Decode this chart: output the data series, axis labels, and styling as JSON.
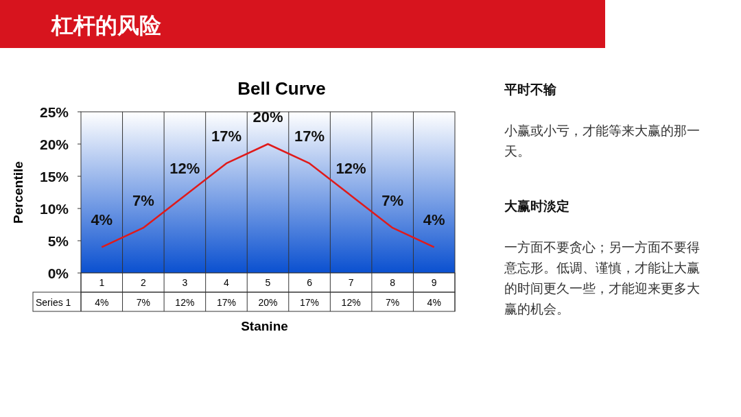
{
  "chart_data": {
    "type": "line",
    "title": "杠杆的风险",
    "subtitle": "Bell Curve",
    "xlabel": "Stanine",
    "ylabel": "Percentile",
    "categories": [
      "1",
      "2",
      "3",
      "4",
      "5",
      "6",
      "7",
      "8",
      "9"
    ],
    "series": [
      {
        "name": "Series 1",
        "color": "#e01a1a",
        "values": [
          4,
          7,
          12,
          17,
          20,
          17,
          12,
          7,
          4
        ],
        "value_labels": [
          "4%",
          "7%",
          "12%",
          "17%",
          "20%",
          "17%",
          "12%",
          "7%",
          "4%"
        ]
      }
    ],
    "ylim": [
      0,
      25
    ],
    "yticks": [
      {
        "value": 0,
        "label": "0%"
      },
      {
        "value": 5,
        "label": "5%"
      },
      {
        "value": 10,
        "label": "10%"
      },
      {
        "value": 15,
        "label": "15%"
      },
      {
        "value": 20,
        "label": "20%"
      },
      {
        "value": 25,
        "label": "25%"
      }
    ],
    "grid": "x",
    "legend": false,
    "marker": "none",
    "line_style": "solid",
    "annotations": [
      "平时不输",
      "小赢或小亏，才能等来大赢的那一天。",
      "大赢时淡定",
      "一方面不要贪心；另一方面不要得意忘形。低调、谨慎，才能让大赢的时间更久一些，才能迎来更多大赢的机会。"
    ]
  }
}
